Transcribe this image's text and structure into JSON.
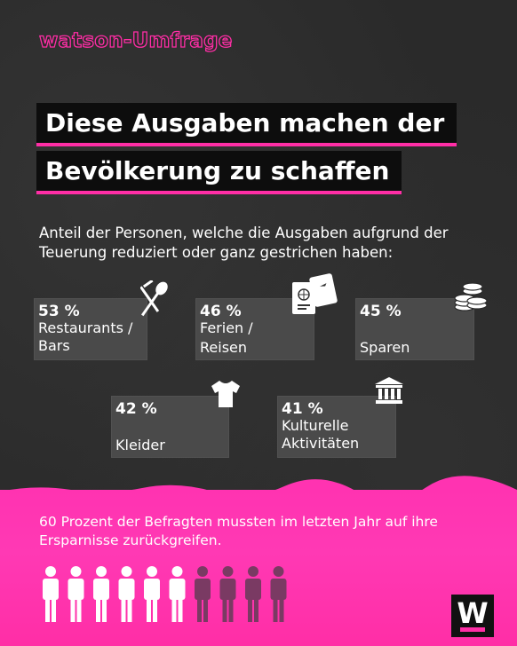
{
  "brand": "watson-Umfrage",
  "headline": {
    "line1": "Diese Ausgaben machen der",
    "line2": "Bevölkerung zu schaffen"
  },
  "subtitle": "Anteil der Personen, welche die Ausgaben aufgrund der Teuerung reduziert oder ganz gestrichen haben:",
  "cards": [
    {
      "percent": "53 %",
      "label_line1": "Restaurants /",
      "label_line2": "Bars",
      "icon": "cutlery-icon"
    },
    {
      "percent": "46 %",
      "label_line1": "Ferien /",
      "label_line2": "Reisen",
      "icon": "passport-ticket-icon"
    },
    {
      "percent": "45 %",
      "label_line1": "",
      "label_line2": "Sparen",
      "icon": "coins-icon"
    },
    {
      "percent": "42 %",
      "label_line1": "",
      "label_line2": "Kleider",
      "icon": "tshirt-icon"
    },
    {
      "percent": "41 %",
      "label_line1": "Kulturelle",
      "label_line2": "Aktivitäten",
      "icon": "museum-icon"
    }
  ],
  "footer": "60 Prozent der Befragten mussten im letzten Jahr auf ihre Ersparnisse zurückgreifen.",
  "people": {
    "total": 10,
    "highlighted": 6,
    "icon": "person-icon"
  },
  "logo": "W",
  "colors": {
    "accent": "#ff2ea6",
    "background": "#2a2a2a",
    "card": "#4a4a4a"
  }
}
